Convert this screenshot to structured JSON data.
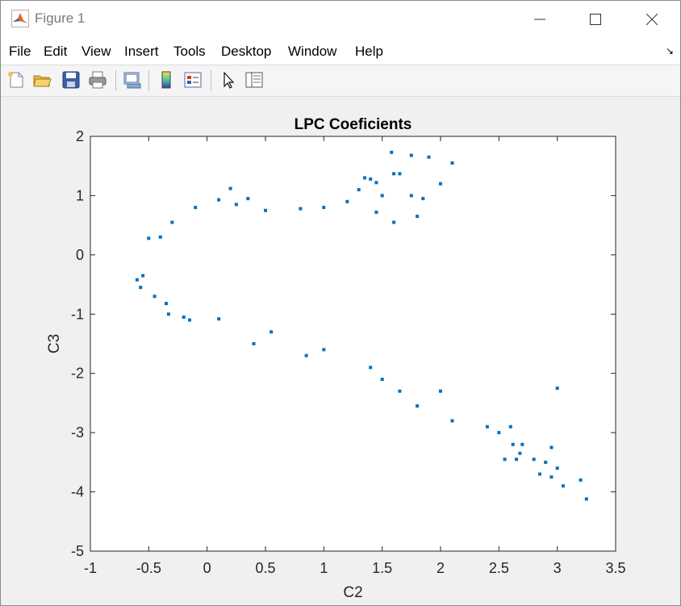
{
  "window": {
    "title": "Figure 1",
    "controls": {
      "minimize_icon": "minimize-icon",
      "maximize_icon": "maximize-icon",
      "close_icon": "close-icon"
    }
  },
  "menu": {
    "items": [
      "File",
      "Edit",
      "View",
      "Insert",
      "Tools",
      "Desktop",
      "Window",
      "Help"
    ],
    "dock_arrow": "↘"
  },
  "toolbar": {
    "icons": [
      "new-figure-icon",
      "open-file-icon",
      "save-icon",
      "print-icon",
      "link-plot-icon",
      "insert-colorbar-icon",
      "insert-legend-icon",
      "edit-plot-arrow-icon",
      "property-inspector-icon"
    ]
  },
  "colors": {
    "marker": "#0072BD",
    "axes_bg": "#ffffff",
    "figure_bg": "#f0f0f0"
  },
  "chart_data": {
    "type": "scatter",
    "title": "LPC Coeficients",
    "xlabel": "C2",
    "ylabel": "C3",
    "xlim": [
      -1,
      3.5
    ],
    "ylim": [
      -5,
      2
    ],
    "xticks": [
      "-1",
      "-0.5",
      "0",
      "0.5",
      "1",
      "1.5",
      "2",
      "2.5",
      "3",
      "3.5"
    ],
    "yticks": [
      "2",
      "1",
      "0",
      "-1",
      "-2",
      "-3",
      "-4",
      "-5"
    ],
    "grid": false,
    "marker": "square",
    "series": [
      {
        "points": [
          [
            1.58,
            1.73
          ],
          [
            1.75,
            1.68
          ],
          [
            1.9,
            1.65
          ],
          [
            2.1,
            1.55
          ],
          [
            1.6,
            1.37
          ],
          [
            1.65,
            1.37
          ],
          [
            1.35,
            1.3
          ],
          [
            1.4,
            1.28
          ],
          [
            1.45,
            1.22
          ],
          [
            2.0,
            1.2
          ],
          [
            1.3,
            1.1
          ],
          [
            1.5,
            1.0
          ],
          [
            1.75,
            1.0
          ],
          [
            1.85,
            0.95
          ],
          [
            0.2,
            1.12
          ],
          [
            0.1,
            0.93
          ],
          [
            0.35,
            0.95
          ],
          [
            0.25,
            0.85
          ],
          [
            1.0,
            0.8
          ],
          [
            0.8,
            0.78
          ],
          [
            0.5,
            0.75
          ],
          [
            1.45,
            0.72
          ],
          [
            1.6,
            0.55
          ],
          [
            1.2,
            0.9
          ],
          [
            1.8,
            0.65
          ],
          [
            -0.1,
            0.8
          ],
          [
            -0.3,
            0.55
          ],
          [
            -0.4,
            0.3
          ],
          [
            -0.5,
            0.28
          ],
          [
            -0.55,
            -0.35
          ],
          [
            -0.6,
            -0.42
          ],
          [
            -0.57,
            -0.55
          ],
          [
            -0.45,
            -0.7
          ],
          [
            -0.35,
            -0.82
          ],
          [
            -0.33,
            -1.0
          ],
          [
            -0.2,
            -1.05
          ],
          [
            -0.15,
            -1.1
          ],
          [
            0.1,
            -1.08
          ],
          [
            0.4,
            -1.5
          ],
          [
            0.55,
            -1.3
          ],
          [
            0.85,
            -1.7
          ],
          [
            1.0,
            -1.6
          ],
          [
            1.4,
            -1.9
          ],
          [
            1.5,
            -2.1
          ],
          [
            1.65,
            -2.3
          ],
          [
            1.8,
            -2.55
          ],
          [
            2.0,
            -2.3
          ],
          [
            2.1,
            -2.8
          ],
          [
            2.4,
            -2.9
          ],
          [
            2.5,
            -3.0
          ],
          [
            2.6,
            -2.9
          ],
          [
            2.62,
            -3.2
          ],
          [
            2.7,
            -3.2
          ],
          [
            2.95,
            -3.25
          ],
          [
            3.0,
            -2.25
          ],
          [
            2.68,
            -3.35
          ],
          [
            2.55,
            -3.45
          ],
          [
            2.65,
            -3.45
          ],
          [
            2.8,
            -3.45
          ],
          [
            2.9,
            -3.5
          ],
          [
            3.0,
            -3.6
          ],
          [
            2.85,
            -3.7
          ],
          [
            2.95,
            -3.75
          ],
          [
            3.05,
            -3.9
          ],
          [
            3.2,
            -3.8
          ],
          [
            3.25,
            -4.12
          ]
        ]
      }
    ]
  }
}
